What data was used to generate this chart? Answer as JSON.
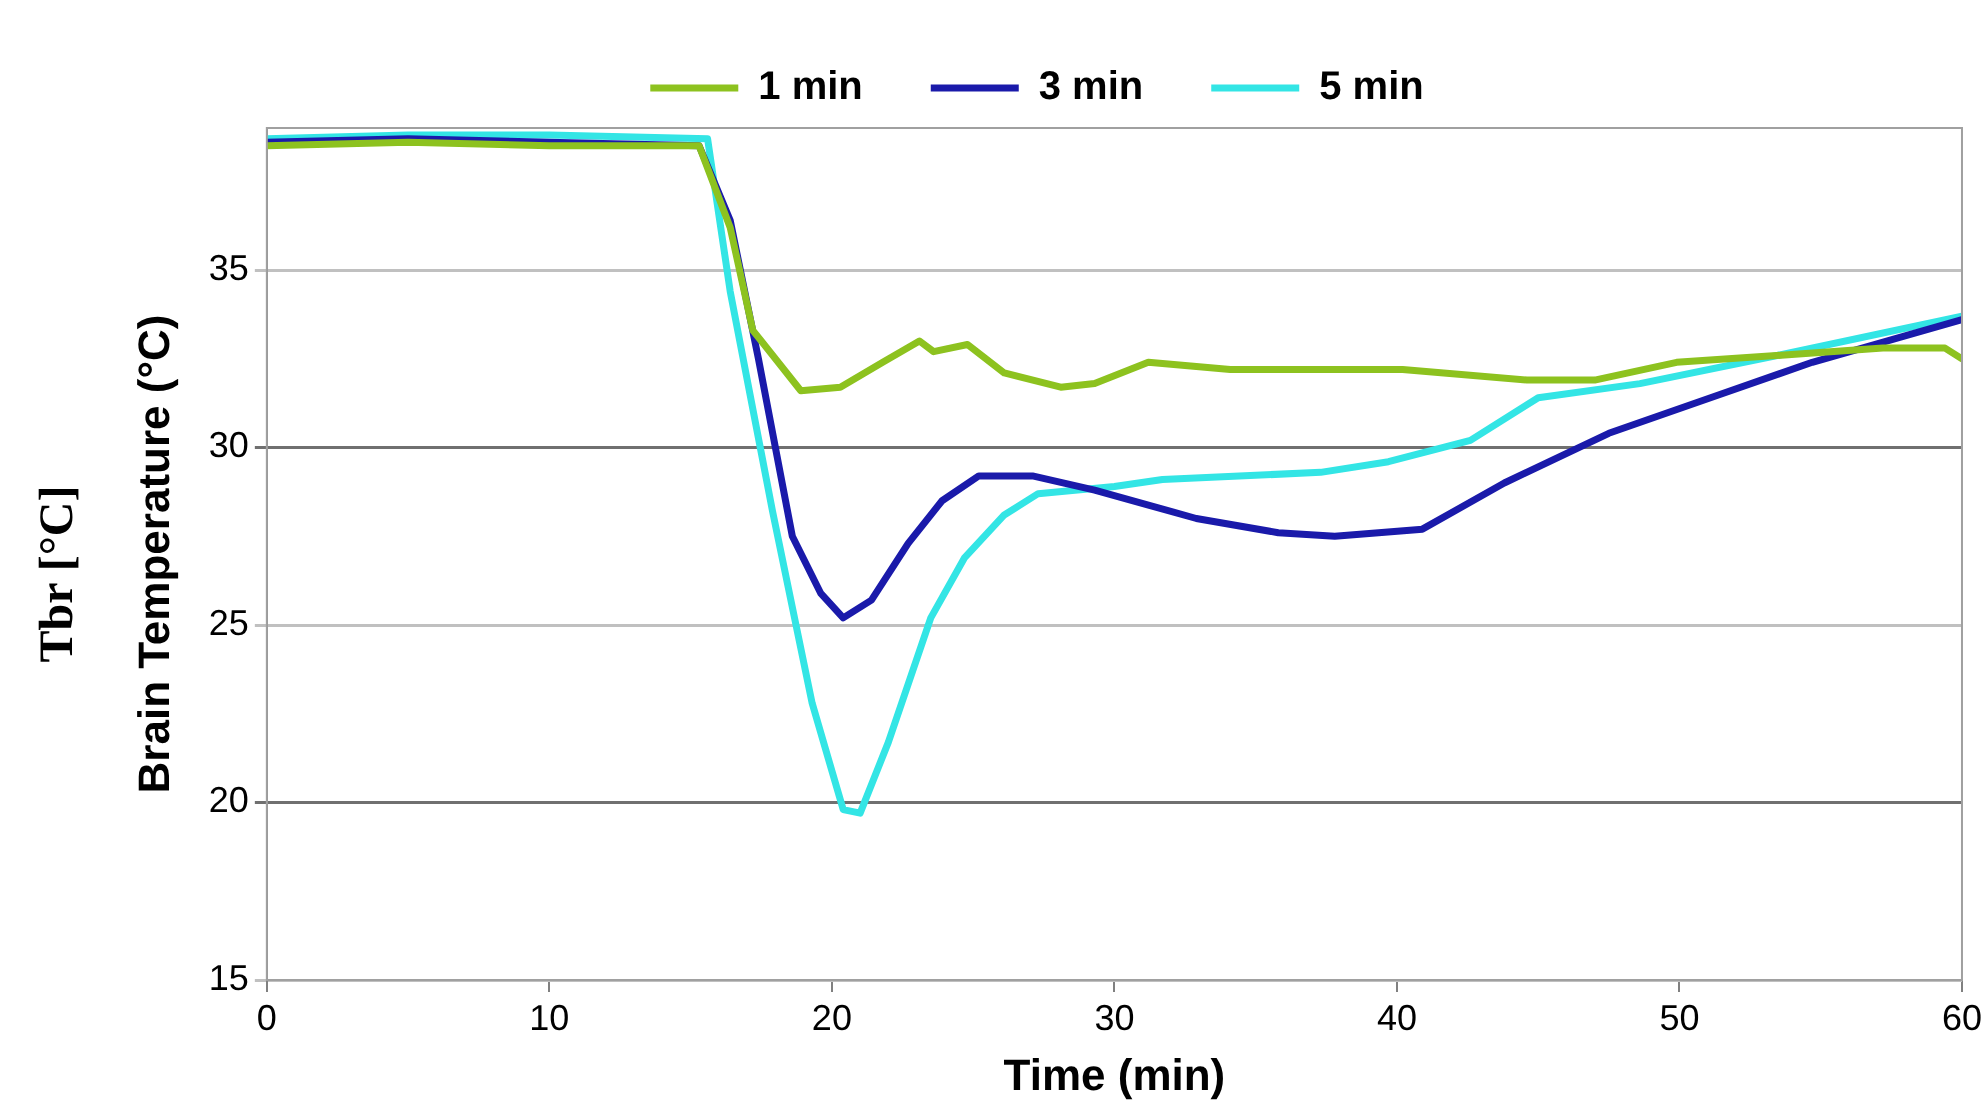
{
  "chart_data": {
    "type": "line",
    "xlabel": "Time (min)",
    "ylabel": "Brain Temperature (°C)",
    "annotations": [
      "Tbr [°C]"
    ],
    "xlim": [
      0,
      60
    ],
    "xticks": [
      0,
      10,
      20,
      30,
      40,
      50,
      60
    ],
    "ylim": [
      15,
      39
    ],
    "yticks": [
      15,
      20,
      25,
      30,
      35
    ],
    "grid": "y",
    "legend": "top",
    "marker": "none",
    "line_style": "solid",
    "series": [
      {
        "name": "1 min",
        "color": "#8dc21f",
        "x": [
          0,
          5,
          10,
          15.3,
          16.4,
          17.2,
          18.9,
          20.3,
          21.8,
          23.1,
          23.6,
          24.8,
          26.1,
          28.1,
          29.3,
          31.2,
          34.1,
          40.2,
          44.6,
          47,
          49.9,
          53.6,
          57.2,
          59.4,
          60
        ],
        "values": [
          38.5,
          38.6,
          38.5,
          38.5,
          36.2,
          33.3,
          31.6,
          31.7,
          32.4,
          33,
          32.7,
          32.9,
          32.1,
          31.7,
          31.8,
          32.4,
          32.2,
          32.2,
          31.9,
          31.9,
          32.4,
          32.6,
          32.8,
          32.8,
          32.5
        ]
      },
      {
        "name": "3 min",
        "color": "#1a1aaa",
        "x": [
          0,
          5,
          10,
          15.3,
          16.4,
          17.4,
          18.6,
          19.6,
          20.4,
          21.4,
          22.7,
          23.9,
          25.2,
          27.1,
          29.3,
          32.9,
          35.8,
          37.8,
          40.9,
          43.8,
          47.5,
          51.1,
          54.7,
          60
        ],
        "values": [
          38.6,
          38.7,
          38.6,
          38.5,
          36.4,
          32.5,
          27.5,
          25.9,
          25.2,
          25.7,
          27.3,
          28.5,
          29.2,
          29.2,
          28.8,
          28,
          27.6,
          27.5,
          27.7,
          29,
          30.4,
          31.4,
          32.4,
          33.6
        ]
      },
      {
        "name": "5 min",
        "color": "#33e5e5",
        "x": [
          0,
          5,
          10,
          15.6,
          16.4,
          17.9,
          19.3,
          20.4,
          21,
          22,
          23.5,
          24.7,
          26.1,
          27.3,
          30,
          31.7,
          37.3,
          39.7,
          42.6,
          45,
          48.6,
          53.5,
          60
        ],
        "values": [
          38.7,
          38.8,
          38.8,
          38.7,
          34.4,
          28.2,
          22.8,
          19.8,
          19.7,
          21.7,
          25.2,
          26.9,
          28.1,
          28.7,
          28.9,
          29.1,
          29.3,
          29.6,
          30.2,
          31.4,
          31.8,
          32.6,
          33.7
        ]
      }
    ]
  }
}
